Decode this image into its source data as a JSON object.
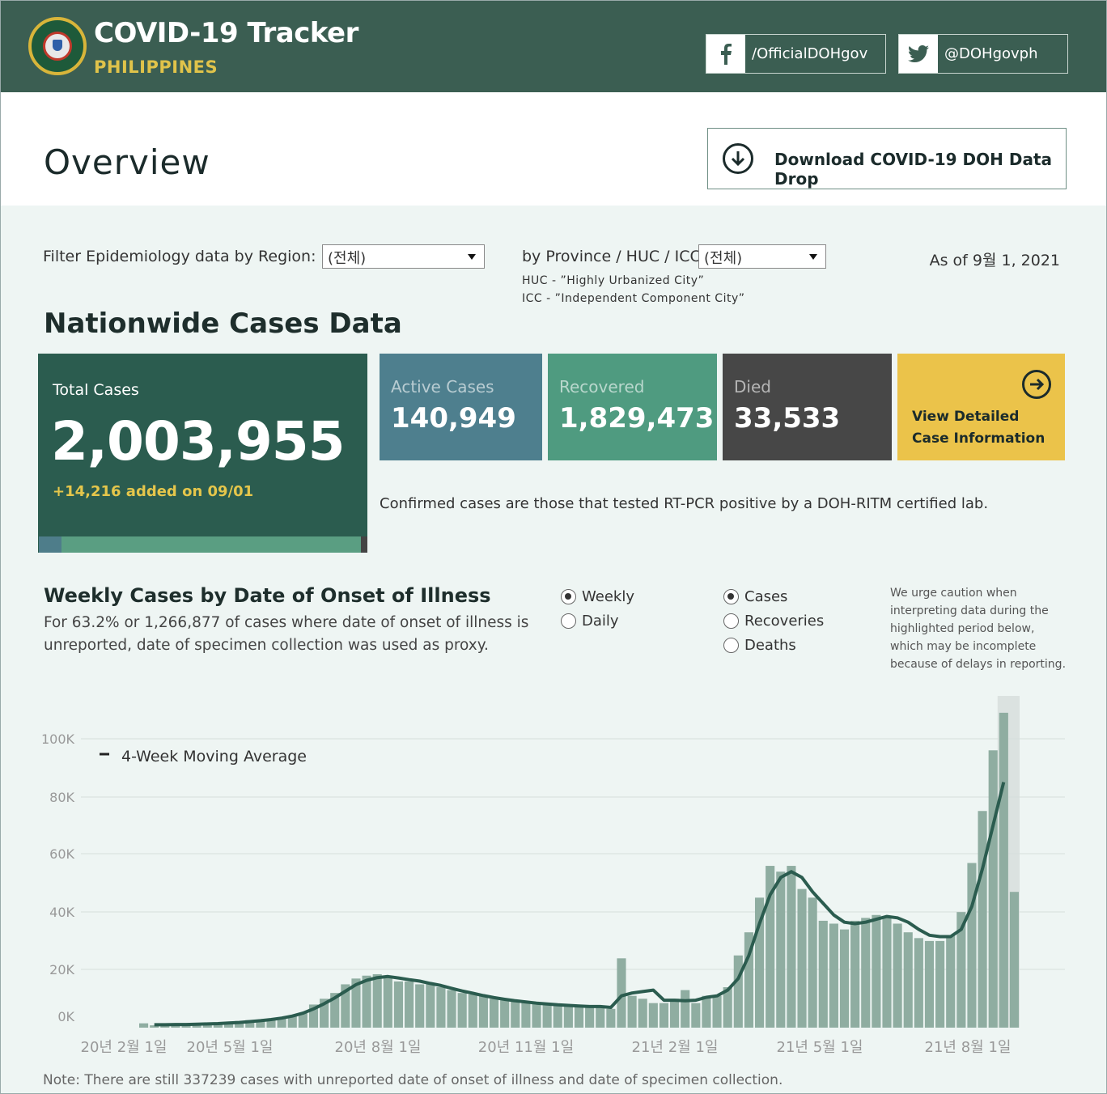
{
  "header": {
    "title": "COVID-19 Tracker",
    "subtitle": "PHILIPPINES",
    "facebook": "/OfficialDOHgov",
    "twitter": "@DOHgovph"
  },
  "overview": {
    "title": "Overview",
    "download_label": "Download COVID-19 DOH Data Drop"
  },
  "filters": {
    "region_label": "Filter Epidemiology data by Region:",
    "region_value": "(전체)",
    "province_label": "by Province / HUC / ICC:",
    "province_value": "(전체)",
    "huc_note": "HUC - ”Highly Urbanized City”",
    "icc_note": "ICC - ”Independent Component City”",
    "as_of": "As of 9월 1, 2021"
  },
  "nationwide": {
    "title": "Nationwide Cases Data",
    "total_label": "Total Cases",
    "total_value": "2,003,955",
    "added": "+14,216 added on 09/01",
    "active_label": "Active Cases",
    "active_value": "140,949",
    "recovered_label": "Recovered",
    "recovered_value": "1,829,473",
    "died_label": "Died",
    "died_value": "33,533",
    "view_line1": "View Detailed",
    "view_line2": "Case Information",
    "confirmed_note": "Confirmed cases are those that tested RT-PCR positive by a DOH-RITM certified lab.",
    "colors": {
      "total": "#2b5c4f",
      "active": "#4e7f8e",
      "recovered": "#4f9b80",
      "died": "#474747",
      "view": "#ebc34a"
    }
  },
  "weekly": {
    "title": "Weekly Cases by Date of Onset of Illness",
    "description": "For 63.2% or 1,266,877 of cases where date of onset of illness is unreported, date of specimen collection was used as proxy.",
    "period_options": [
      {
        "label": "Weekly",
        "selected": true
      },
      {
        "label": "Daily",
        "selected": false
      }
    ],
    "metric_options": [
      {
        "label": "Cases",
        "selected": true
      },
      {
        "label": "Recoveries",
        "selected": false
      },
      {
        "label": "Deaths",
        "selected": false
      }
    ],
    "caution": "We urge caution when interpreting data during the highlighted period below, which may be incomplete because of delays in reporting."
  },
  "chart_data": {
    "type": "bar",
    "legend": "4-Week Moving Average",
    "y_ticks": [
      "100K",
      "80K",
      "60K",
      "40K",
      "20K",
      "0K"
    ],
    "ylim": [
      0,
      100000
    ],
    "x_ticks": [
      "20년 2월 1일",
      "20년 5월 1일",
      "20년 8월 1일",
      "20년 11월 1일",
      "21년 2월 1일",
      "21년 5월 1일",
      "21년 8월 1일"
    ],
    "values": [
      1500,
      800,
      1000,
      900,
      1200,
      1100,
      1300,
      1500,
      2000,
      2300,
      2600,
      2800,
      3000,
      3500,
      4000,
      5000,
      8000,
      10000,
      12000,
      15000,
      17000,
      18000,
      18500,
      18000,
      16000,
      16000,
      15000,
      15000,
      14000,
      13000,
      12000,
      11500,
      11000,
      10000,
      9500,
      9000,
      9000,
      8500,
      8000,
      8000,
      7500,
      7500,
      7500,
      7000,
      6500,
      24000,
      11000,
      10000,
      8500,
      8500,
      10000,
      13000,
      8500,
      11000,
      11000,
      14000,
      25000,
      33000,
      45000,
      56000,
      54000,
      56000,
      48000,
      45000,
      37000,
      36000,
      34000,
      37000,
      38000,
      39000,
      38000,
      36000,
      33000,
      31000,
      30000,
      30000,
      32000,
      40000,
      57000,
      75000,
      96000,
      109000,
      47000
    ],
    "moving_average": [
      null,
      1000,
      1000,
      1100,
      1100,
      1200,
      1300,
      1400,
      1600,
      1800,
      2100,
      2400,
      2800,
      3300,
      4000,
      5000,
      6500,
      8300,
      10300,
      12600,
      14900,
      16400,
      17300,
      17700,
      17200,
      16600,
      16100,
      15300,
      14600,
      13600,
      12700,
      11900,
      11100,
      10400,
      9800,
      9300,
      8900,
      8500,
      8200,
      7900,
      7700,
      7500,
      7300,
      7300,
      7000,
      11000,
      12000,
      12500,
      13000,
      9500,
      9500,
      9300,
      9500,
      10500,
      11000,
      13000,
      17000,
      25000,
      36000,
      46000,
      52000,
      54000,
      52000,
      47000,
      43000,
      39000,
      36500,
      36000,
      36500,
      37500,
      38500,
      38000,
      36500,
      34000,
      32000,
      31500,
      31500,
      34000,
      42000,
      55000,
      70000,
      85000,
      null
    ],
    "highlight_last_weeks": 2,
    "colors": {
      "bar": "#8fada1",
      "line": "#2b5c4f",
      "highlight": "#dbe2e0"
    }
  },
  "footnote": "Note: There are still 337239 cases with unreported date of onset of illness and date of specimen collection."
}
